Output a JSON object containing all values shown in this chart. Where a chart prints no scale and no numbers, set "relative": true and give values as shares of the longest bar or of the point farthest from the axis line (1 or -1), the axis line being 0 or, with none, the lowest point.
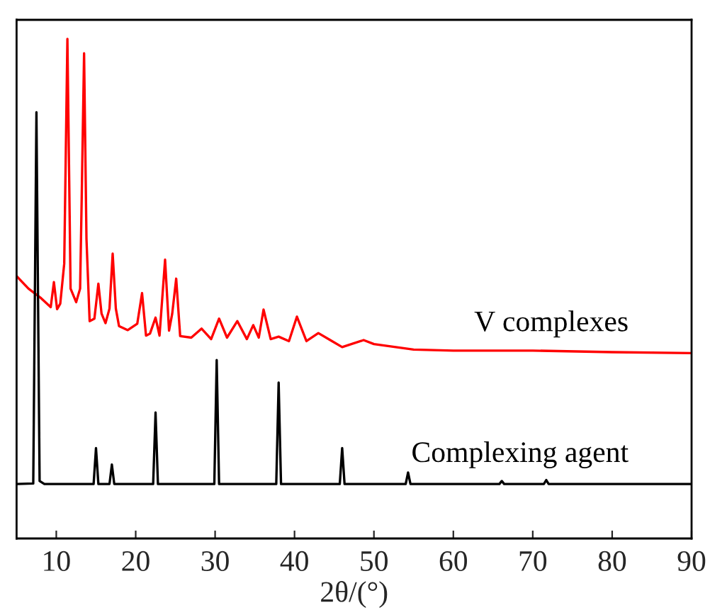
{
  "chart_data": {
    "type": "line",
    "xlabel": "2θ/(°)",
    "relative": true,
    "xlim": [
      5,
      90
    ],
    "xticks": [
      10,
      20,
      30,
      40,
      50,
      60,
      70,
      80,
      90
    ],
    "grid": false,
    "legend": false,
    "series": [
      {
        "name": "V complexes",
        "color": "#ff0000",
        "x": [
          5,
          6.5,
          8,
          9.3,
          9.7,
          10.1,
          10.5,
          11.0,
          11.4,
          11.8,
          12.5,
          13.0,
          13.2,
          13.5,
          13.8,
          14.2,
          14.8,
          15.3,
          15.7,
          16.2,
          16.7,
          17.1,
          17.5,
          17.9,
          19,
          20.2,
          20.8,
          21.3,
          21.8,
          22.5,
          23.0,
          23.7,
          24.2,
          24.6,
          25.1,
          25.6,
          27,
          28.3,
          29.5,
          30.5,
          31.5,
          32.8,
          34,
          34.8,
          35.5,
          36.1,
          37,
          38,
          39.3,
          40.3,
          41.5,
          43,
          44.5,
          46,
          48.7,
          50,
          55,
          60,
          70,
          80,
          90
        ],
        "values": [
          0.525,
          0.5,
          0.482,
          0.463,
          0.513,
          0.459,
          0.47,
          0.55,
          1.0,
          0.5,
          0.473,
          0.5,
          0.68,
          0.971,
          0.6,
          0.435,
          0.44,
          0.51,
          0.45,
          0.431,
          0.46,
          0.57,
          0.46,
          0.425,
          0.417,
          0.43,
          0.491,
          0.406,
          0.41,
          0.442,
          0.406,
          0.558,
          0.416,
          0.45,
          0.52,
          0.405,
          0.402,
          0.42,
          0.399,
          0.44,
          0.402,
          0.435,
          0.399,
          0.427,
          0.402,
          0.458,
          0.399,
          0.404,
          0.395,
          0.444,
          0.395,
          0.411,
          0.397,
          0.383,
          0.397,
          0.389,
          0.378,
          0.376,
          0.376,
          0.373,
          0.371
        ]
      },
      {
        "name": "Complexing agent",
        "color": "#000000",
        "x": [
          5,
          7.1,
          7.5,
          7.9,
          8.5,
          14.7,
          15.0,
          15.3,
          16.7,
          17.0,
          17.3,
          22.2,
          22.5,
          22.8,
          29.9,
          30.2,
          30.5,
          37.7,
          38.0,
          38.3,
          45.7,
          46.0,
          46.3,
          54.0,
          54.3,
          54.6,
          65.8,
          66.1,
          66.4,
          71.4,
          71.7,
          72.0,
          90
        ],
        "values": [
          0.109,
          0.11,
          0.853,
          0.115,
          0.109,
          0.109,
          0.181,
          0.109,
          0.109,
          0.148,
          0.109,
          0.109,
          0.252,
          0.109,
          0.109,
          0.357,
          0.109,
          0.109,
          0.312,
          0.109,
          0.109,
          0.181,
          0.109,
          0.109,
          0.132,
          0.109,
          0.109,
          0.115,
          0.109,
          0.109,
          0.117,
          0.109,
          0.109
        ]
      }
    ]
  }
}
